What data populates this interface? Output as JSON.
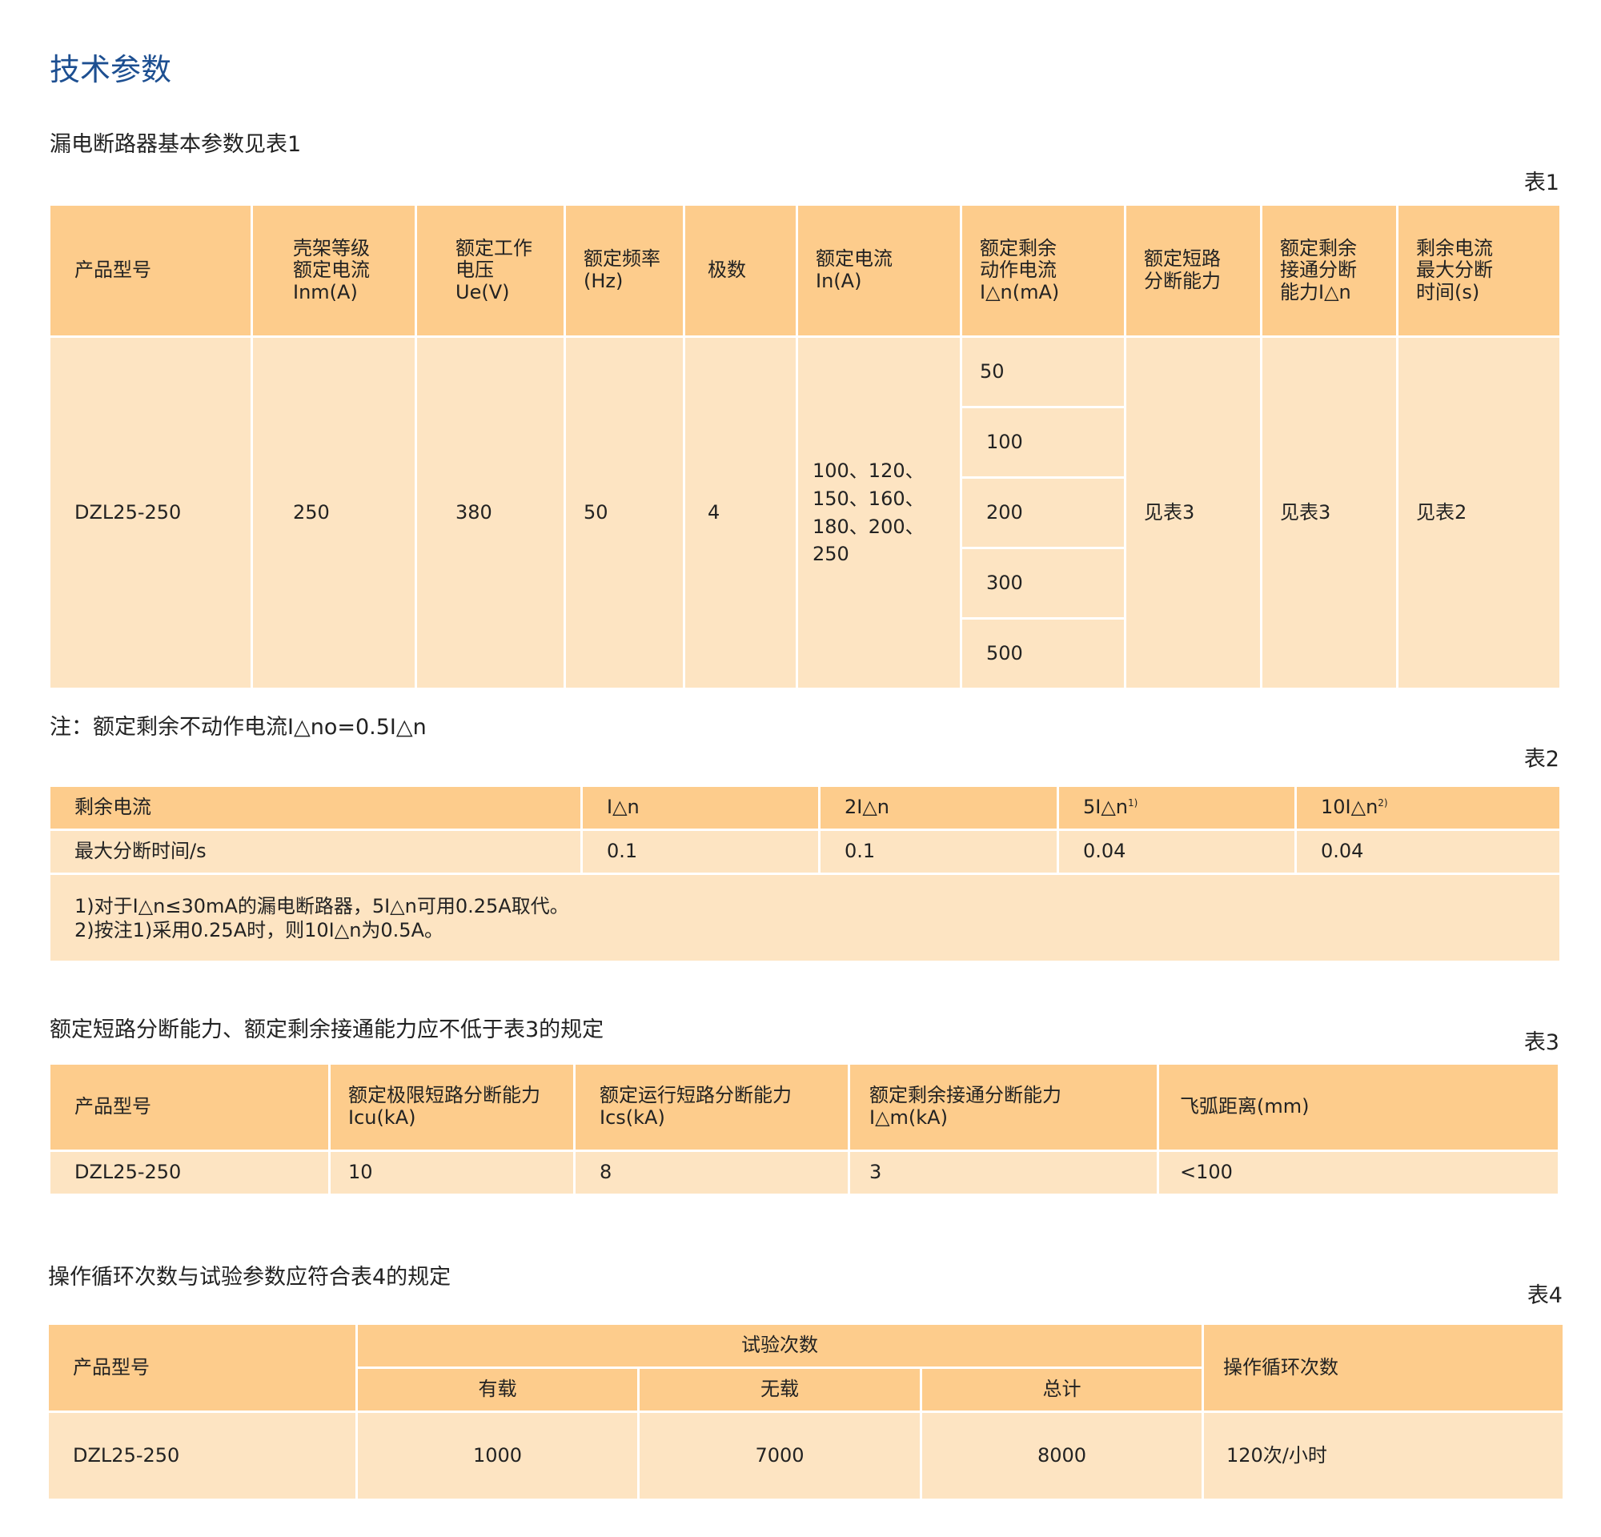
{
  "title": "技术参数",
  "section1": {
    "heading": "漏电断路器基本参数见表1",
    "table_label": "表1",
    "headers": [
      "产品型号",
      "壳架等级\n额定电流\nInm(A)",
      "额定工作\n电压\nUe(V)",
      "额定频率\n(Hz)",
      "极数",
      "额定电流\nIn(A)",
      "额定剩余\n动作电流\nI△n(mA)",
      "额定短路\n分断能力",
      "额定剩余\n接通分断\n能力I△n",
      "剩余电流\n最大分断\n时间(s)"
    ],
    "row": {
      "model": "DZL25-250",
      "inm": "250",
      "ue": "380",
      "hz": "50",
      "poles": "4",
      "in": "100、120、\n150、160、\n180、200、\n250",
      "idn": [
        "50",
        "100",
        "200",
        "300",
        "500"
      ],
      "short_circuit": "见表3",
      "residual_make_break": "见表3",
      "max_break_time": "见表2"
    },
    "note": "注：额定剩余不动作电流I△no=0.5I△n"
  },
  "section2": {
    "table_label": "表2",
    "header": [
      "剩余电流",
      "I△n",
      "2I△n",
      "5I△n",
      "10I△n"
    ],
    "header_sup": [
      "",
      "",
      "",
      "1)",
      "2)"
    ],
    "row": [
      "最大分断时间/s",
      "0.1",
      "0.1",
      "0.04",
      "0.04"
    ],
    "footnotes": [
      "1)对于I△n≤30mA的漏电断路器，5I△n可用0.25A取代。",
      "2)按注1)采用0.25A时，则10I△n为0.5A。"
    ]
  },
  "section3": {
    "heading": "额定短路分断能力、额定剩余接通能力应不低于表3的规定",
    "table_label": "表3",
    "headers": [
      "产品型号",
      "额定极限短路分断能力\nIcu(kA)",
      "额定运行短路分断能力\nIcs(kA)",
      "额定剩余接通分断能力\nI△m(kA)",
      "飞弧距离(mm)"
    ],
    "row": [
      "DZL25-250",
      "10",
      "8",
      "3",
      "<100"
    ]
  },
  "section4": {
    "heading": "操作循环次数与试验参数应符合表4的规定",
    "table_label": "表4",
    "header_model": "产品型号",
    "header_tests": "试验次数",
    "header_sub": [
      "有载",
      "无载",
      "总计"
    ],
    "header_cycles": "操作循环次数",
    "row": [
      "DZL25-250",
      "1000",
      "7000",
      "8000",
      "120次/小时"
    ]
  },
  "colors": {
    "title": "#1d4f91",
    "header_bg": "#fdcc8c",
    "body_bg": "#fde4c2"
  }
}
